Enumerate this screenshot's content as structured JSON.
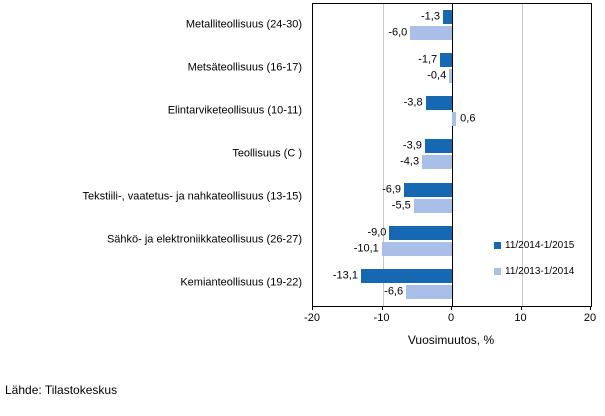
{
  "footer": {
    "source": "Lähde: Tilastokeskus"
  },
  "chart_data": {
    "type": "bar",
    "orientation": "horizontal",
    "title": "",
    "xlabel": "Vuosimuutos, %",
    "ylabel": "",
    "xlim": [
      -20,
      20
    ],
    "xticks": [
      -20,
      -10,
      0,
      10,
      20
    ],
    "xtick_labels": [
      "-20",
      "-10",
      "0",
      "10",
      "20"
    ],
    "gridlines_at": [
      -10,
      10
    ],
    "grid_color": "#c6c6c6",
    "axis_color": "#000000",
    "legend_position": "right-middle",
    "categories": [
      "Metalliteollisuus (24-30)",
      "Metsäteollisuus (16-17)",
      "Elintarviketeollisuus (10-11)",
      "Teollisuus (C )",
      "Tekstiili-, vaatetus- ja nahkateollisuus (13-15)",
      "Sähkö- ja elektroniikkateollisuus (26-27)",
      "Kemianteollisuus (19-22)"
    ],
    "series": [
      {
        "name": "11/2014-1/2015",
        "color": "#1668B2",
        "values": [
          -1.3,
          -1.7,
          -3.8,
          -3.9,
          -6.9,
          -9.0,
          -13.1
        ],
        "value_labels": [
          "-1,3",
          "-1,7",
          "-3,8",
          "-3,9",
          "-6,9",
          "-9,0",
          "-13,1"
        ]
      },
      {
        "name": "11/2013-1/2014",
        "color": "#A9BFE8",
        "values": [
          -6.0,
          -0.4,
          0.6,
          -4.3,
          -5.5,
          -10.1,
          -6.6
        ],
        "value_labels": [
          "-6,0",
          "-0,4",
          "0,6",
          "-4,3",
          "-5,5",
          "-10,1",
          "-6,6"
        ]
      }
    ]
  }
}
